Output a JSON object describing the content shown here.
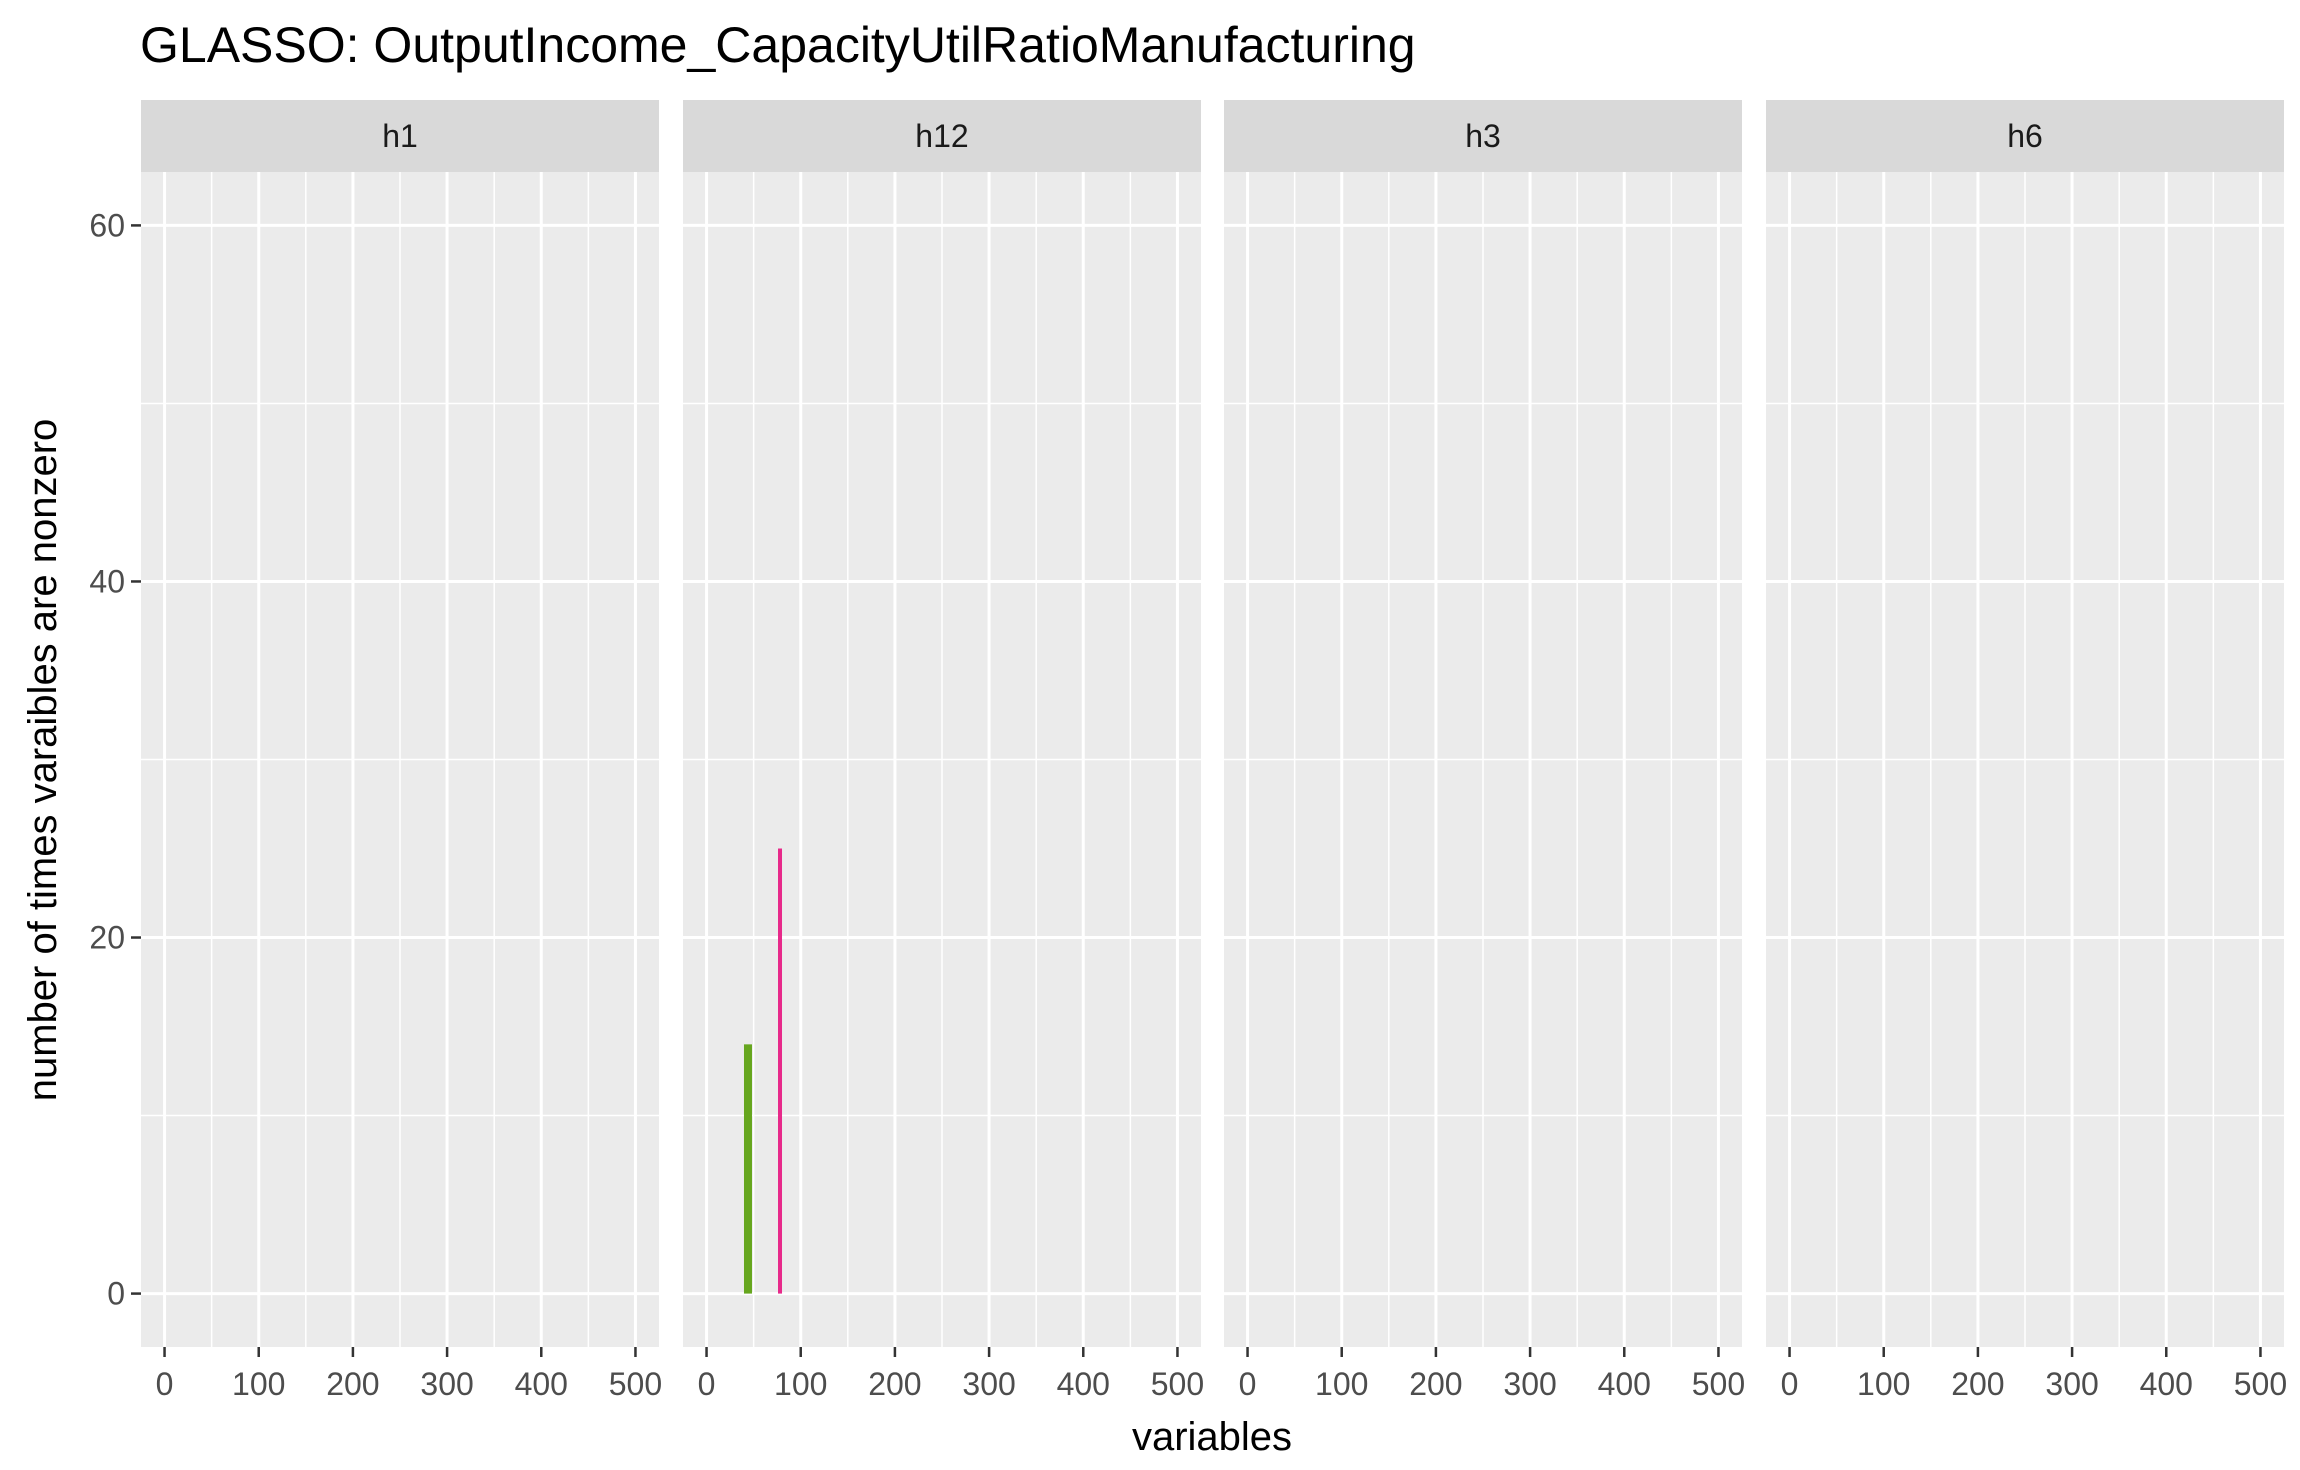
{
  "chart_data": {
    "type": "bar",
    "title": "GLASSO: OutputIncome_CapacityUtilRatioManufacturing",
    "xlabel": "variables",
    "ylabel": "number of times varaibles are nonzero",
    "xlim": [
      -25,
      525
    ],
    "ylim": [
      -3,
      63
    ],
    "x_ticks": [
      0,
      100,
      200,
      300,
      400,
      500
    ],
    "y_ticks": [
      0,
      20,
      40,
      60
    ],
    "grid": true,
    "legend": "none",
    "facets": [
      {
        "label": "h1",
        "bars": []
      },
      {
        "label": "h12",
        "bars": [
          {
            "x": 44,
            "value": 14,
            "color": "#66a61e"
          },
          {
            "x": 78,
            "value": 25,
            "color": "#e7298a"
          }
        ]
      },
      {
        "label": "h3",
        "bars": []
      },
      {
        "label": "h6",
        "bars": []
      }
    ]
  }
}
